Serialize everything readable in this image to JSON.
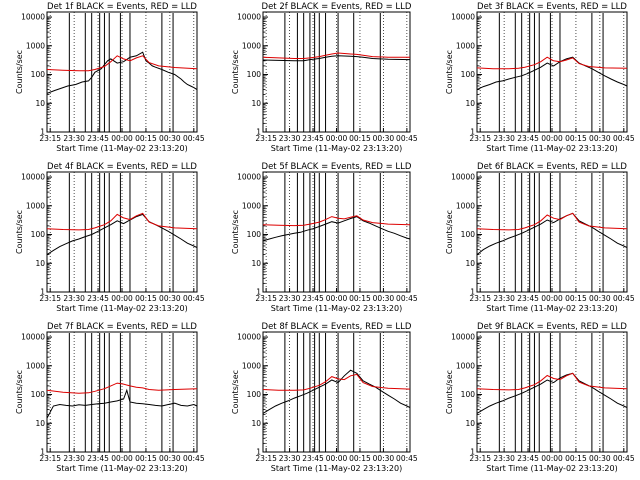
{
  "figure": {
    "xlabel": "Start Time (11-May-02 23:13:20)",
    "ylabel": "Counts/sec",
    "x_tick_labels": [
      "23:15",
      "23:30",
      "23:45",
      "00:00",
      "00:15",
      "00:30",
      "00:45"
    ],
    "y_tick_labels": [
      "1",
      "10",
      "100",
      "1000",
      "10000"
    ]
  },
  "chart_data": [
    {
      "type": "line",
      "title": "Det 1f BLACK = Events, RED = LLD",
      "xlabel": "Start Time (11-May-02 23:13:20)",
      "ylabel": "Counts/sec",
      "y_scale": "log",
      "ylim": [
        1,
        15000
      ],
      "x_tick_labels": [
        "23:15",
        "23:30",
        "23:45",
        "00:00",
        "00:15",
        "00:30",
        "00:45"
      ],
      "series": [
        {
          "name": "BLACK = Events",
          "color": "#000000",
          "x": [
            0,
            5,
            10,
            13,
            18,
            22,
            26,
            28,
            30,
            34,
            36,
            38,
            40,
            44,
            48,
            52,
            56,
            60,
            62,
            64,
            66,
            68,
            72,
            76,
            80,
            84,
            86,
            88,
            90,
            92,
            94
          ],
          "values": [
            22,
            28,
            35,
            40,
            45,
            55,
            60,
            80,
            120,
            160,
            220,
            300,
            350,
            250,
            280,
            400,
            450,
            600,
            300,
            250,
            200,
            180,
            150,
            120,
            100,
            70,
            55,
            45,
            40,
            35,
            30
          ]
        },
        {
          "name": "RED = LLD",
          "color": "#dd0000",
          "x": [
            0,
            10,
            20,
            26,
            30,
            36,
            40,
            44,
            48,
            52,
            56,
            60,
            64,
            70,
            80,
            94
          ],
          "values": [
            150,
            140,
            135,
            135,
            150,
            190,
            280,
            450,
            350,
            300,
            380,
            450,
            260,
            200,
            175,
            160
          ]
        }
      ]
    },
    {
      "type": "line",
      "title": "Det 2f BLACK = Events, RED = LLD",
      "xlabel": "Start Time (11-May-02 23:13:20)",
      "ylabel": "Counts/sec",
      "y_scale": "log",
      "ylim": [
        1,
        15000
      ],
      "x_tick_labels": [
        "23:15",
        "23:30",
        "23:45",
        "00:00",
        "00:15",
        "00:30",
        "00:45"
      ],
      "series": [
        {
          "name": "BLACK = Events",
          "color": "#000000",
          "x": [
            0,
            10,
            20,
            26,
            30,
            36,
            40,
            44,
            48,
            52,
            56,
            60,
            64,
            70,
            80,
            94
          ],
          "values": [
            320,
            310,
            300,
            300,
            330,
            360,
            400,
            430,
            450,
            440,
            430,
            420,
            400,
            360,
            340,
            330
          ]
        },
        {
          "name": "RED = LLD",
          "color": "#dd0000",
          "x": [
            0,
            10,
            20,
            26,
            30,
            36,
            40,
            44,
            48,
            52,
            56,
            60,
            64,
            70,
            80,
            94
          ],
          "values": [
            400,
            380,
            360,
            360,
            380,
            420,
            470,
            520,
            560,
            540,
            520,
            500,
            470,
            420,
            400,
            400
          ]
        }
      ]
    },
    {
      "type": "line",
      "title": "Det 3f BLACK = Events, RED = LLD",
      "xlabel": "Start Time (11-May-02 23:13:20)",
      "ylabel": "Counts/sec",
      "y_scale": "log",
      "ylim": [
        1,
        15000
      ],
      "x_tick_labels": [
        "23:15",
        "23:30",
        "23:45",
        "00:00",
        "00:15",
        "00:30",
        "00:45"
      ],
      "series": [
        {
          "name": "BLACK = Events",
          "color": "#000000",
          "x": [
            0,
            4,
            8,
            12,
            16,
            20,
            24,
            28,
            32,
            36,
            40,
            44,
            48,
            52,
            56,
            60,
            64,
            68,
            72,
            76,
            80,
            84,
            88,
            92,
            94
          ],
          "values": [
            30,
            38,
            45,
            55,
            60,
            70,
            80,
            90,
            110,
            140,
            180,
            250,
            200,
            280,
            350,
            400,
            250,
            200,
            160,
            120,
            90,
            70,
            55,
            45,
            40
          ]
        },
        {
          "name": "RED = LLD",
          "color": "#dd0000",
          "x": [
            0,
            10,
            20,
            26,
            30,
            36,
            40,
            44,
            48,
            52,
            56,
            60,
            64,
            70,
            80,
            94
          ],
          "values": [
            170,
            160,
            160,
            165,
            180,
            220,
            280,
            400,
            300,
            280,
            320,
            380,
            240,
            190,
            170,
            165
          ]
        }
      ]
    },
    {
      "type": "line",
      "title": "Det 4f BLACK = Events, RED = LLD",
      "xlabel": "Start Time (11-May-02 23:13:20)",
      "ylabel": "Counts/sec",
      "y_scale": "log",
      "ylim": [
        1,
        15000
      ],
      "x_tick_labels": [
        "23:15",
        "23:30",
        "23:45",
        "00:00",
        "00:15",
        "00:30",
        "00:45"
      ],
      "series": [
        {
          "name": "BLACK = Events",
          "color": "#000000",
          "x": [
            0,
            4,
            8,
            12,
            16,
            20,
            24,
            28,
            32,
            36,
            40,
            44,
            48,
            52,
            56,
            60,
            64,
            68,
            72,
            76,
            80,
            84,
            88,
            92,
            94
          ],
          "values": [
            20,
            28,
            38,
            48,
            60,
            70,
            85,
            100,
            130,
            170,
            220,
            300,
            240,
            320,
            420,
            500,
            280,
            220,
            170,
            130,
            95,
            70,
            50,
            40,
            35
          ]
        },
        {
          "name": "RED = LLD",
          "color": "#dd0000",
          "x": [
            0,
            10,
            20,
            26,
            30,
            36,
            40,
            44,
            48,
            52,
            56,
            60,
            64,
            70,
            80,
            94
          ],
          "values": [
            160,
            150,
            145,
            150,
            170,
            220,
            300,
            500,
            380,
            330,
            450,
            550,
            270,
            200,
            170,
            160
          ]
        }
      ]
    },
    {
      "type": "line",
      "title": "Det 5f BLACK = Events, RED = LLD",
      "xlabel": "Start Time (11-May-02 23:13:20)",
      "ylabel": "Counts/sec",
      "y_scale": "log",
      "ylim": [
        1,
        15000
      ],
      "x_tick_labels": [
        "23:15",
        "23:30",
        "23:45",
        "00:00",
        "00:15",
        "00:30",
        "00:45"
      ],
      "series": [
        {
          "name": "BLACK = Events",
          "color": "#000000",
          "x": [
            0,
            4,
            8,
            12,
            16,
            20,
            24,
            28,
            32,
            36,
            40,
            44,
            48,
            52,
            56,
            60,
            64,
            68,
            72,
            76,
            80,
            84,
            88,
            92,
            94
          ],
          "values": [
            60,
            70,
            80,
            90,
            100,
            110,
            120,
            140,
            160,
            190,
            230,
            280,
            250,
            300,
            360,
            420,
            300,
            250,
            200,
            160,
            130,
            110,
            90,
            75,
            70
          ]
        },
        {
          "name": "RED = LLD",
          "color": "#dd0000",
          "x": [
            0,
            10,
            20,
            26,
            30,
            36,
            40,
            44,
            48,
            52,
            56,
            60,
            64,
            70,
            80,
            94
          ],
          "values": [
            220,
            210,
            205,
            210,
            230,
            270,
            330,
            420,
            370,
            350,
            400,
            450,
            320,
            260,
            230,
            220
          ]
        }
      ]
    },
    {
      "type": "line",
      "title": "Det 6f BLACK = Events, RED = LLD",
      "xlabel": "Start Time (11-May-02 23:13:20)",
      "ylabel": "Counts/sec",
      "y_scale": "log",
      "ylim": [
        1,
        15000
      ],
      "x_tick_labels": [
        "23:15",
        "23:30",
        "23:45",
        "00:00",
        "00:15",
        "00:30",
        "00:45"
      ],
      "series": [
        {
          "name": "BLACK = Events",
          "color": "#000000",
          "x": [
            0,
            4,
            8,
            12,
            16,
            20,
            24,
            28,
            32,
            36,
            40,
            44,
            48,
            52,
            56,
            60,
            64,
            68,
            72,
            76,
            80,
            84,
            88,
            92,
            94
          ],
          "values": [
            20,
            30,
            40,
            50,
            60,
            75,
            90,
            110,
            140,
            180,
            230,
            320,
            260,
            350,
            450,
            550,
            300,
            230,
            180,
            130,
            95,
            70,
            50,
            40,
            35
          ]
        },
        {
          "name": "RED = LLD",
          "color": "#dd0000",
          "x": [
            0,
            10,
            20,
            26,
            30,
            36,
            40,
            44,
            48,
            52,
            56,
            60,
            64,
            70,
            80,
            94
          ],
          "values": [
            160,
            150,
            145,
            150,
            170,
            220,
            300,
            480,
            370,
            330,
            450,
            550,
            270,
            200,
            170,
            160
          ]
        }
      ]
    },
    {
      "type": "line",
      "title": "Det 7f BLACK = Events, RED = LLD",
      "xlabel": "Start Time (11-May-02 23:13:20)",
      "ylabel": "Counts/sec",
      "y_scale": "log",
      "ylim": [
        1,
        15000
      ],
      "x_tick_labels": [
        "23:15",
        "23:30",
        "23:45",
        "00:00",
        "00:15",
        "00:30",
        "00:45"
      ],
      "series": [
        {
          "name": "BLACK = Events",
          "color": "#000000",
          "x": [
            0,
            4,
            8,
            12,
            16,
            20,
            24,
            28,
            32,
            36,
            40,
            44,
            48,
            50,
            52,
            56,
            60,
            64,
            68,
            72,
            76,
            80,
            84,
            88,
            92,
            94
          ],
          "values": [
            15,
            40,
            45,
            42,
            40,
            44,
            42,
            45,
            48,
            50,
            55,
            60,
            70,
            140,
            55,
            50,
            48,
            45,
            42,
            40,
            45,
            50,
            42,
            40,
            45,
            40
          ]
        },
        {
          "name": "RED = LLD",
          "color": "#dd0000",
          "x": [
            0,
            10,
            20,
            26,
            30,
            36,
            40,
            44,
            48,
            52,
            56,
            60,
            64,
            70,
            80,
            94
          ],
          "values": [
            140,
            120,
            110,
            115,
            130,
            160,
            200,
            250,
            230,
            200,
            180,
            170,
            150,
            140,
            150,
            160
          ]
        }
      ]
    },
    {
      "type": "line",
      "title": "Det 8f BLACK = Events, RED = LLD",
      "xlabel": "Start Time (11-May-02 23:13:20)",
      "ylabel": "Counts/sec",
      "y_scale": "log",
      "ylim": [
        1,
        15000
      ],
      "x_tick_labels": [
        "23:15",
        "23:30",
        "23:45",
        "00:00",
        "00:15",
        "00:30",
        "00:45"
      ],
      "series": [
        {
          "name": "BLACK = Events",
          "color": "#000000",
          "x": [
            0,
            4,
            8,
            12,
            16,
            20,
            24,
            28,
            32,
            36,
            40,
            44,
            48,
            52,
            56,
            60,
            64,
            68,
            72,
            76,
            80,
            84,
            88,
            92,
            94
          ],
          "values": [
            22,
            30,
            40,
            50,
            60,
            75,
            90,
            110,
            140,
            180,
            230,
            320,
            260,
            450,
            700,
            550,
            300,
            230,
            180,
            130,
            95,
            70,
            50,
            40,
            35
          ]
        },
        {
          "name": "RED = LLD",
          "color": "#dd0000",
          "x": [
            0,
            10,
            20,
            26,
            30,
            36,
            40,
            44,
            48,
            52,
            56,
            60,
            64,
            70,
            80,
            94
          ],
          "values": [
            150,
            140,
            140,
            145,
            165,
            210,
            280,
            420,
            350,
            330,
            450,
            500,
            260,
            190,
            165,
            155
          ]
        }
      ]
    },
    {
      "type": "line",
      "title": "Det 9f BLACK = Events, RED = LLD",
      "xlabel": "Start Time (11-May-02 23:13:20)",
      "ylabel": "Counts/sec",
      "y_scale": "log",
      "ylim": [
        1,
        15000
      ],
      "x_tick_labels": [
        "23:15",
        "23:30",
        "23:45",
        "00:00",
        "00:15",
        "00:30",
        "00:45"
      ],
      "series": [
        {
          "name": "BLACK = Events",
          "color": "#000000",
          "x": [
            0,
            4,
            8,
            12,
            16,
            20,
            24,
            28,
            32,
            36,
            40,
            44,
            48,
            52,
            56,
            60,
            64,
            68,
            72,
            76,
            80,
            84,
            88,
            92,
            94
          ],
          "values": [
            22,
            30,
            40,
            50,
            60,
            75,
            90,
            110,
            140,
            180,
            230,
            320,
            260,
            380,
            480,
            550,
            300,
            230,
            180,
            130,
            95,
            70,
            50,
            40,
            35
          ]
        },
        {
          "name": "RED = LLD",
          "color": "#dd0000",
          "x": [
            0,
            10,
            20,
            26,
            30,
            36,
            40,
            44,
            48,
            52,
            56,
            60,
            64,
            70,
            80,
            94
          ],
          "values": [
            160,
            150,
            145,
            150,
            170,
            220,
            300,
            460,
            360,
            330,
            450,
            550,
            270,
            200,
            170,
            160
          ]
        }
      ]
    }
  ]
}
